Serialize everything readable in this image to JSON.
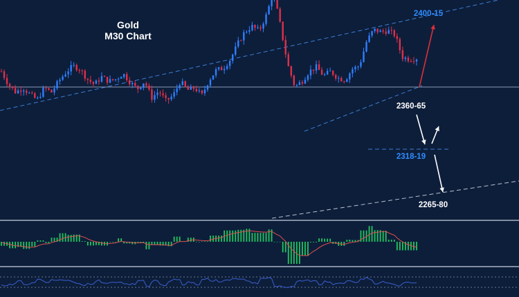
{
  "chart_data": {
    "type": "candlestick",
    "title": "Gold",
    "subtitle": "M30 Chart",
    "colors": {
      "background": "#0d1e3a",
      "up": "#2f7fff",
      "down": "#e0304a",
      "trend_line": "#3b7fd6",
      "level_line": "#8a9bb8",
      "bullish_arrow": "#e0303a",
      "bearish_arrow": "#ffffff",
      "label_blue": "#2f8cff",
      "label_white": "#ffffff",
      "macd_hist": "#22c55e",
      "macd_signal": "#e05050",
      "rsi_line": "#3b5fd0",
      "panel_separator": "#c9d2e0"
    },
    "price_axis_range": [
      2220,
      2420
    ],
    "close_path": [
      2355,
      2343,
      2336,
      2340,
      2334,
      2329,
      2340,
      2336,
      2346,
      2354,
      2360,
      2357,
      2348,
      2343,
      2350,
      2346,
      2348,
      2353,
      2345,
      2339,
      2346,
      2331,
      2337,
      2328,
      2333,
      2346,
      2338,
      2340,
      2333,
      2347,
      2356,
      2358,
      2366,
      2380,
      2391,
      2396,
      2392,
      2406,
      2427,
      2396,
      2361,
      2341,
      2346,
      2355,
      2359,
      2351,
      2355,
      2349,
      2347,
      2357,
      2360,
      2382,
      2393,
      2391,
      2392,
      2388,
      2368,
      2366,
      2367
    ],
    "annotations": [
      {
        "id": "target_high",
        "text": "2400-15",
        "color": "blue"
      },
      {
        "id": "pivot",
        "text": "2360-65",
        "color": "white"
      },
      {
        "id": "support1",
        "text": "2318-19",
        "color": "blue"
      },
      {
        "id": "support2",
        "text": "2265-80",
        "color": "white"
      }
    ],
    "indicators": [
      {
        "name": "MACD",
        "type": "histogram+signal"
      },
      {
        "name": "RSI",
        "type": "line"
      }
    ]
  }
}
